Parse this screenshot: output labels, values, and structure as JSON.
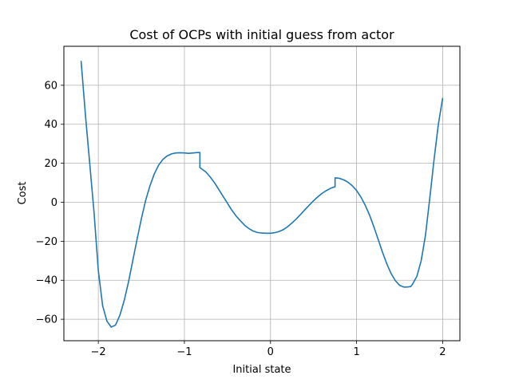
{
  "chart_data": {
    "type": "line",
    "title": "Cost of OCPs with initial guess from actor",
    "xlabel": "Initial state",
    "ylabel": "Cost",
    "xlim": [
      -2.4,
      2.2
    ],
    "ylim": [
      -71,
      80
    ],
    "grid": true,
    "x_ticks": [
      -2,
      -1,
      0,
      1,
      2
    ],
    "x_tick_labels": [
      "−2",
      "−1",
      "0",
      "1",
      "2"
    ],
    "y_ticks": [
      -60,
      -40,
      -20,
      0,
      20,
      40,
      60
    ],
    "y_tick_labels": [
      "−60",
      "−40",
      "−20",
      "0",
      "20",
      "40",
      "60"
    ],
    "line_color": "#1f77b4",
    "series": [
      {
        "x": [
          -2.2,
          -2.15,
          -2.1,
          -2.05,
          -2.0,
          -1.95,
          -1.9,
          -1.85,
          -1.8,
          -1.75,
          -1.7,
          -1.65,
          -1.6,
          -1.55,
          -1.5,
          -1.45,
          -1.4,
          -1.35,
          -1.3,
          -1.25,
          -1.2,
          -1.15,
          -1.1,
          -1.05,
          -1.0,
          -0.95,
          -0.9,
          -0.85,
          -0.82,
          -0.82,
          -0.75,
          -0.7,
          -0.65,
          -0.6,
          -0.55,
          -0.5,
          -0.45,
          -0.4,
          -0.35,
          -0.3,
          -0.25,
          -0.2,
          -0.15,
          -0.1,
          -0.05,
          0.0,
          0.05,
          0.1,
          0.15,
          0.2,
          0.25,
          0.3,
          0.35,
          0.4,
          0.45,
          0.5,
          0.55,
          0.6,
          0.65,
          0.7,
          0.75,
          0.75,
          0.8,
          0.85,
          0.9,
          0.95,
          1.0,
          1.05,
          1.1,
          1.15,
          1.2,
          1.25,
          1.3,
          1.35,
          1.4,
          1.45,
          1.5,
          1.55,
          1.6,
          1.63,
          1.65,
          1.7,
          1.75,
          1.8,
          1.85,
          1.9,
          1.95,
          2.0
        ],
        "y": [
          72.5,
          45.0,
          20.0,
          -5.0,
          -35.0,
          -53.0,
          -61.0,
          -64.0,
          -63.0,
          -58.0,
          -50.5,
          -41.0,
          -30.0,
          -19.0,
          -8.5,
          1.0,
          8.5,
          14.5,
          19.0,
          22.0,
          23.8,
          24.8,
          25.3,
          25.4,
          25.3,
          25.1,
          25.3,
          25.5,
          25.5,
          17.8,
          15.5,
          13.0,
          10.0,
          6.5,
          3.0,
          -0.5,
          -4.0,
          -7.0,
          -9.5,
          -11.8,
          -13.5,
          -14.8,
          -15.5,
          -15.8,
          -15.9,
          -15.9,
          -15.6,
          -15.0,
          -14.0,
          -12.5,
          -10.6,
          -8.5,
          -6.2,
          -3.8,
          -1.5,
          0.8,
          2.8,
          4.6,
          6.0,
          7.2,
          8.0,
          12.5,
          12.3,
          11.5,
          10.3,
          8.5,
          6.0,
          2.7,
          -1.5,
          -6.5,
          -12.5,
          -19.0,
          -25.5,
          -31.5,
          -36.5,
          -40.2,
          -42.6,
          -43.5,
          -43.4,
          -43.2,
          -42.0,
          -38.0,
          -30.0,
          -17.0,
          2.0,
          22.0,
          40.0,
          53.5
        ]
      }
    ]
  }
}
